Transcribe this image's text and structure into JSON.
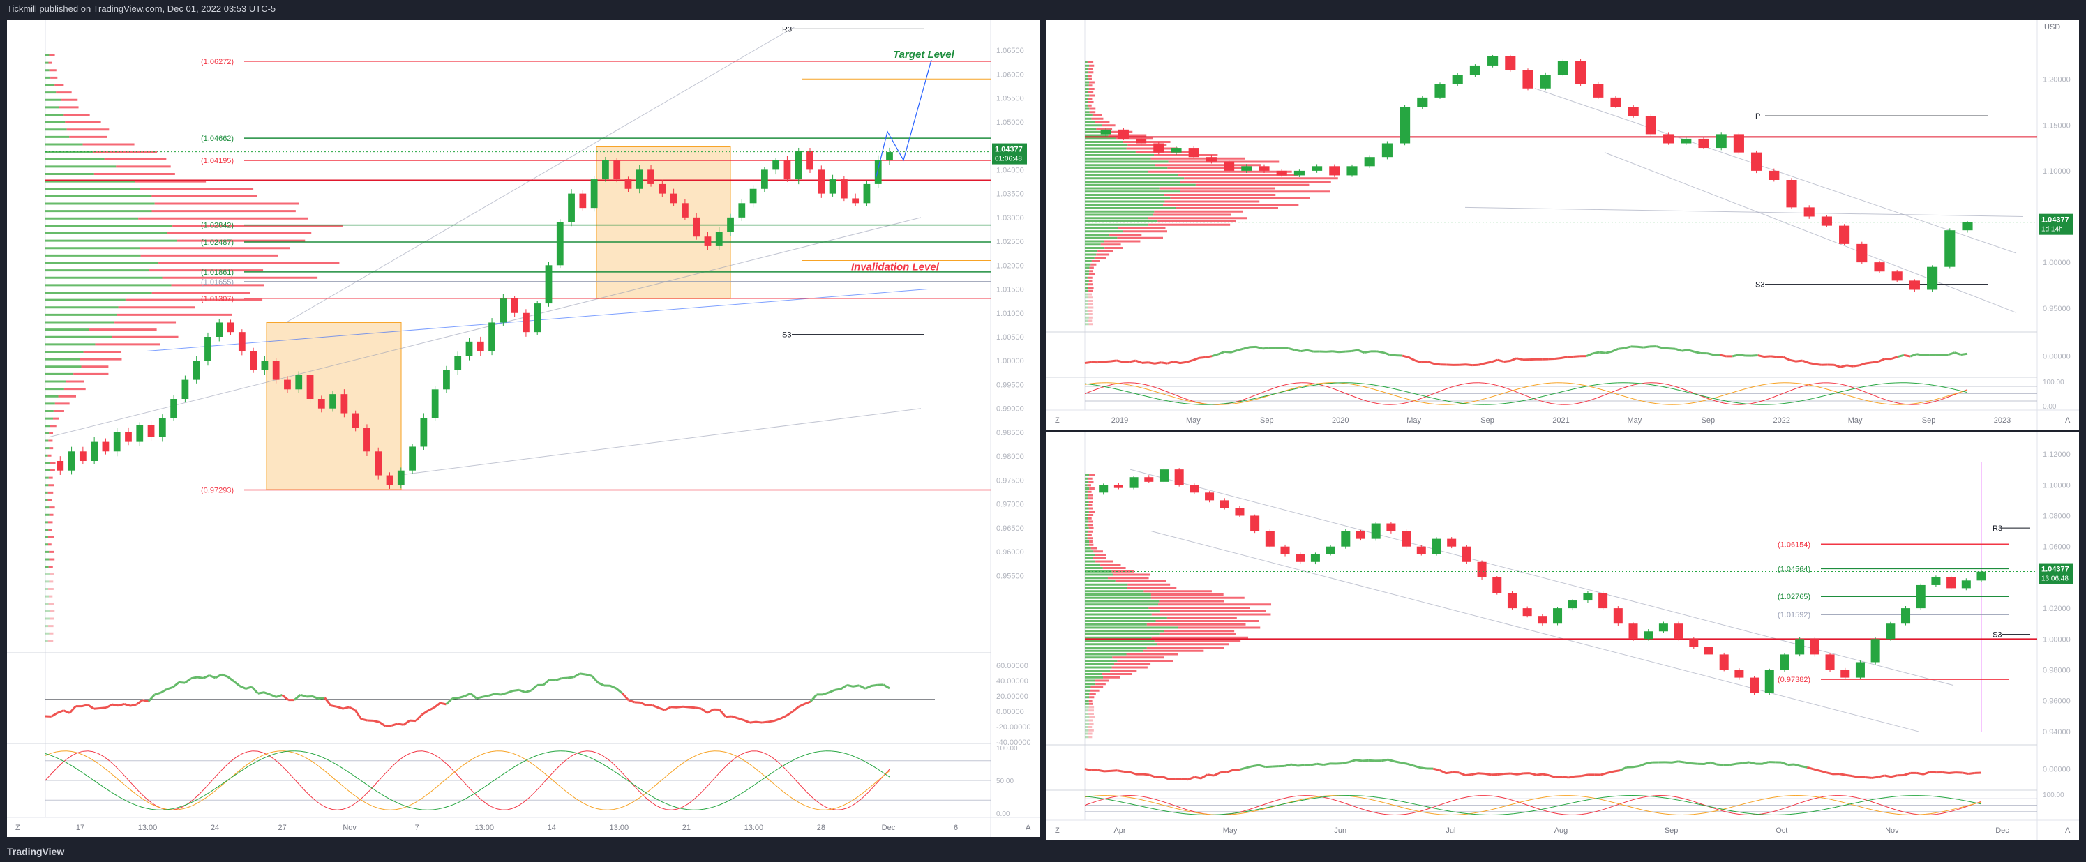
{
  "header": {
    "publisher": "Tickmill published on TradingView.com, Dec 01, 2022 03:53 UTC-5"
  },
  "footer": {
    "brand": "TradingView"
  },
  "colors": {
    "bull": "#26a641",
    "bear": "#f23645",
    "orange": "#f7a325",
    "volGreen": "#4caf50",
    "volRed": "#f23645",
    "blue": "#2962ff"
  },
  "price": {
    "last": "1.04377",
    "countdown_4h": "01:06:48",
    "countdown_weekly": "1d 14h",
    "countdown_daily": "13:06:48",
    "currency": "USD"
  },
  "chart_data": [
    {
      "type": "candlestick",
      "panel": "4h",
      "ylim": [
        0.94,
        1.07
      ],
      "price_ticks": [
        "1.06500",
        "1.06000",
        "1.05500",
        "1.05000",
        "1.04500",
        "1.04000",
        "1.03500",
        "1.03000",
        "1.02500",
        "1.02000",
        "1.01500",
        "1.01000",
        "1.00500",
        "1.00000",
        "0.99500",
        "0.99000",
        "0.98500",
        "0.98000",
        "0.97500",
        "0.97000",
        "0.96500",
        "0.96000",
        "0.95500"
      ],
      "x_labels": [
        "17",
        "13:00",
        "24",
        "27",
        "Nov",
        "7",
        "13:00",
        "14",
        "13:00",
        "21",
        "13:00",
        "28",
        "Dec",
        "6"
      ],
      "levels": [
        {
          "label": "(1.06272)",
          "value": 1.06272,
          "color": "#f23645"
        },
        {
          "label": "(1.04662)",
          "value": 1.04662,
          "color": "#1e8e3e"
        },
        {
          "label": "(1.04195)",
          "value": 1.04195,
          "color": "#f23645"
        },
        {
          "label": "(1.02842)",
          "value": 1.02842,
          "color": "#1e8e3e"
        },
        {
          "label": "(1.02487)",
          "value": 1.02487,
          "color": "#1e8e3e"
        },
        {
          "label": "(1.01861)",
          "value": 1.01861,
          "color": "#1e8e3e"
        },
        {
          "label": "(1.01655)",
          "value": 1.01655,
          "color": "#9aa0b5"
        },
        {
          "label": "(1.01307)",
          "value": 1.01307,
          "color": "#f23645"
        },
        {
          "label": "(0.97293)",
          "value": 0.97293,
          "color": "#f23645"
        }
      ],
      "pivots": [
        {
          "label": "R3",
          "value": 1.0695
        },
        {
          "label": "S3",
          "value": 1.0055
        }
      ],
      "annotations": [
        {
          "text": "Target Level",
          "value": 1.0615
        },
        {
          "text": "Invalidation Level",
          "value": 1.0185
        }
      ],
      "candles_ohlc_start": 0.979,
      "path": [
        0.979,
        0.977,
        0.981,
        0.979,
        0.983,
        0.981,
        0.985,
        0.983,
        0.9865,
        0.984,
        0.988,
        0.992,
        0.996,
        1.0,
        1.005,
        1.008,
        1.006,
        1.002,
        0.998,
        1.0,
        0.996,
        0.994,
        0.997,
        0.992,
        0.99,
        0.993,
        0.989,
        0.986,
        0.981,
        0.976,
        0.974,
        0.977,
        0.982,
        0.988,
        0.994,
        0.998,
        1.001,
        1.004,
        1.002,
        1.008,
        1.013,
        1.01,
        1.006,
        1.012,
        1.02,
        1.029,
        1.035,
        1.032,
        1.038,
        1.042,
        1.038,
        1.036,
        1.04,
        1.037,
        1.035,
        1.033,
        1.03,
        1.026,
        1.024,
        1.027,
        1.03,
        1.033,
        1.036,
        1.04,
        1.042,
        1.038,
        1.044,
        1.04,
        1.035,
        1.038,
        1.034,
        1.033,
        1.037,
        1.042,
        1.0437
      ],
      "oscillator_ticks": [
        "60.00000",
        "40.00000",
        "20.00000",
        "0.00000",
        "-20.00000",
        "-40.00000"
      ],
      "stoch_ticks": [
        "100.00",
        "50.00",
        "0.00"
      ]
    },
    {
      "type": "candlestick",
      "panel": "weekly",
      "ylim": [
        0.93,
        1.25
      ],
      "price_ticks": [
        "1.20000",
        "1.15000",
        "1.10000",
        "1.05000",
        "1.00000",
        "0.95000"
      ],
      "x_labels": [
        "2019",
        "May",
        "Sep",
        "2020",
        "May",
        "Sep",
        "2021",
        "May",
        "Sep",
        "2022",
        "May",
        "Sep",
        "2023"
      ],
      "pivots": [
        {
          "label": "P",
          "value": 1.16
        },
        {
          "label": "S3",
          "value": 0.976
        }
      ],
      "path": [
        1.14,
        1.145,
        1.135,
        1.13,
        1.12,
        1.125,
        1.115,
        1.11,
        1.1,
        1.105,
        1.1,
        1.095,
        1.1,
        1.105,
        1.095,
        1.105,
        1.115,
        1.13,
        1.17,
        1.18,
        1.195,
        1.205,
        1.215,
        1.225,
        1.21,
        1.19,
        1.205,
        1.22,
        1.195,
        1.18,
        1.17,
        1.16,
        1.14,
        1.13,
        1.135,
        1.125,
        1.14,
        1.12,
        1.1,
        1.09,
        1.06,
        1.05,
        1.04,
        1.02,
        1.0,
        0.99,
        0.98,
        0.97,
        0.995,
        1.035,
        1.0437
      ],
      "oscillator_ticks": [
        "0.00000"
      ],
      "stoch_ticks": [
        "100.00",
        "0.00"
      ]
    },
    {
      "type": "candlestick",
      "panel": "daily",
      "ylim": [
        0.935,
        1.125
      ],
      "price_ticks": [
        "1.12000",
        "1.10000",
        "1.08000",
        "1.06000",
        "1.04000",
        "1.02000",
        "1.00000",
        "0.98000",
        "0.96000",
        "0.94000"
      ],
      "x_labels": [
        "Apr",
        "May",
        "Jun",
        "Jul",
        "Aug",
        "Sep",
        "Oct",
        "Nov",
        "Dec"
      ],
      "levels": [
        {
          "label": "(1.06154)",
          "value": 1.06154,
          "color": "#f23645"
        },
        {
          "label": "(1.04564)",
          "value": 1.04564,
          "color": "#1e8e3e"
        },
        {
          "label": "(1.02765)",
          "value": 1.02765,
          "color": "#1e8e3e"
        },
        {
          "label": "(1.01592)",
          "value": 1.01592,
          "color": "#9aa0b5"
        },
        {
          "label": "(0.97382)",
          "value": 0.97382,
          "color": "#f23645"
        }
      ],
      "pivots": [
        {
          "label": "R3",
          "value": 1.072
        },
        {
          "label": "S3",
          "value": 1.003
        }
      ],
      "path": [
        1.095,
        1.1,
        1.098,
        1.105,
        1.102,
        1.11,
        1.1,
        1.095,
        1.09,
        1.085,
        1.08,
        1.07,
        1.06,
        1.055,
        1.05,
        1.055,
        1.06,
        1.07,
        1.065,
        1.075,
        1.07,
        1.06,
        1.055,
        1.065,
        1.06,
        1.05,
        1.04,
        1.03,
        1.02,
        1.015,
        1.01,
        1.02,
        1.025,
        1.03,
        1.02,
        1.01,
        1.0,
        1.005,
        1.01,
        1.0,
        0.995,
        0.99,
        0.98,
        0.975,
        0.965,
        0.98,
        0.99,
        1.0,
        0.99,
        0.98,
        0.975,
        0.985,
        1.0,
        1.01,
        1.02,
        1.035,
        1.04,
        1.033,
        1.038,
        1.0437
      ],
      "oscillator_ticks": [
        "0.00000"
      ],
      "stoch_ticks": [
        "100.00"
      ]
    }
  ]
}
